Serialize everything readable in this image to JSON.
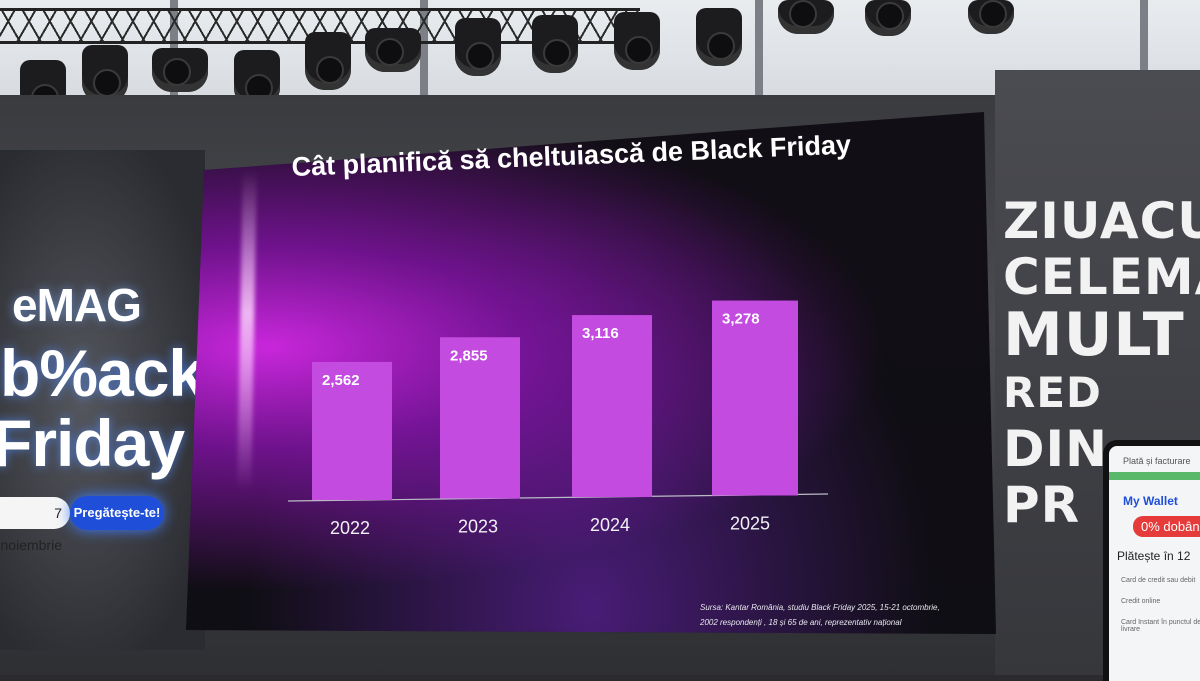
{
  "chart_data": {
    "type": "bar",
    "title": "Cât planifică să cheltuiască de Black Friday",
    "categories": [
      "2022",
      "2023",
      "2024",
      "2025"
    ],
    "values": [
      2562,
      2855,
      3116,
      3278
    ],
    "value_labels": [
      "2,562",
      "2,855",
      "3,116",
      "3,278"
    ],
    "ylim": [
      0,
      3800
    ],
    "grid": false,
    "bar_color": "#c44be0",
    "source_line1": "Sursa: Kantar România, studiu Black Friday 2025, 15-21 octombrie,",
    "source_line2": "2002 respondenți , 18 și 65 de ani, reprezentativ național"
  },
  "left_panel": {
    "brand": "eMAG",
    "promo_line1": "b%ack",
    "promo_line2": "Friday",
    "date_text": "7 noiembrie",
    "cta_label": "Pregătește-te!"
  },
  "right_panel": {
    "slogan_lines": [
      "ZIUACU",
      "CELEMA",
      "MULT",
      "RED",
      "DIN",
      "PR"
    ],
    "phone": {
      "title": "Plată și facturare",
      "wallet": "My Wallet",
      "discount": "0% dobân",
      "pay": "Plătește în 12",
      "option1": "Card de credit sau debit",
      "option2": "Credit online",
      "option3": "Card Instant în punctul de livrare"
    }
  },
  "colors": {
    "accent_blue": "#1f4fd8",
    "bar_purple": "#c44be0"
  }
}
